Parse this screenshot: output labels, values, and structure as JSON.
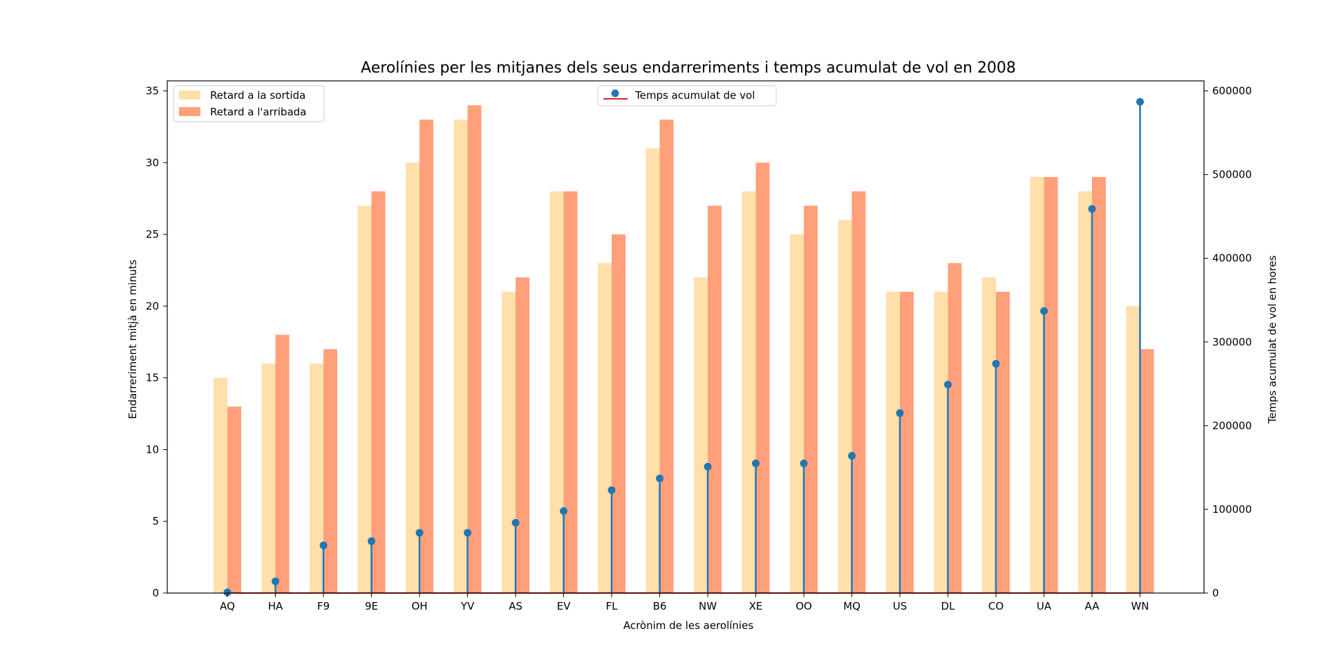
{
  "chart_data": {
    "type": "bar",
    "title": "Aerolínies per les mitjanes dels seus endarreriments i temps acumulat de vol en 2008",
    "xlabel": "Acrònim de les aerolínies",
    "ylabel": "Endarreriment mitjà en minuts",
    "ylabel_right": "Temps acumulat de vol en hores",
    "categories": [
      "AQ",
      "HA",
      "F9",
      "9E",
      "OH",
      "YV",
      "AS",
      "EV",
      "FL",
      "B6",
      "NW",
      "XE",
      "OO",
      "MQ",
      "US",
      "DL",
      "CO",
      "UA",
      "AA",
      "WN"
    ],
    "ylim": [
      0,
      35.7
    ],
    "yticks": [
      0,
      5,
      10,
      15,
      20,
      25,
      30,
      35
    ],
    "ylim_right": [
      0,
      612000
    ],
    "yticks_right": [
      0,
      100000,
      200000,
      300000,
      400000,
      500000,
      600000
    ],
    "series": [
      {
        "name": "Retard a la sortida",
        "kind": "bar",
        "color": "#ffdfaa",
        "values": [
          15,
          16,
          16,
          27,
          30,
          33,
          21,
          28,
          23,
          31,
          22,
          28,
          25,
          26,
          21,
          21,
          22,
          29,
          28,
          20
        ]
      },
      {
        "name": "Retard a l'arribada",
        "kind": "bar",
        "color": "#ffa07a",
        "values": [
          13,
          18,
          17,
          28,
          33,
          34,
          22,
          28,
          25,
          33,
          27,
          30,
          27,
          28,
          21,
          23,
          21,
          29,
          29,
          17
        ]
      },
      {
        "name": "Temps acumulat de vol",
        "kind": "stem",
        "axis": "right",
        "color": "#1f77b4",
        "baseline_color": "#d62728",
        "values": [
          800,
          14000,
          57000,
          62000,
          72000,
          72000,
          84000,
          98000,
          123000,
          137000,
          151000,
          155000,
          155000,
          164000,
          215000,
          249000,
          274000,
          337000,
          459000,
          587000
        ]
      }
    ],
    "legend_left_position": "upper left",
    "legend_right_position": "upper center",
    "grid": false
  }
}
